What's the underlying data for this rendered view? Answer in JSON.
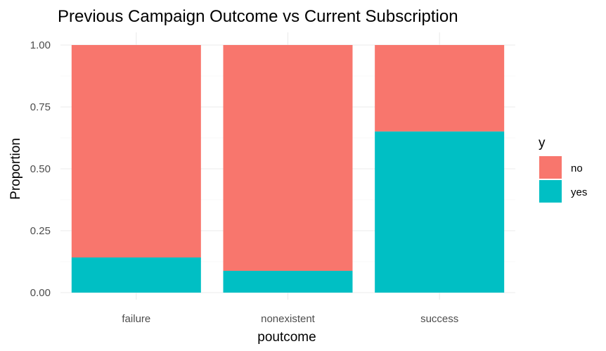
{
  "chart_data": {
    "type": "bar",
    "stacked": true,
    "title": "Previous Campaign Outcome vs Current Subscription",
    "xlabel": "poutcome",
    "ylabel": "Proportion",
    "categories": [
      "failure",
      "nonexistent",
      "success"
    ],
    "series": [
      {
        "name": "yes",
        "color": "#00BFC4",
        "values": [
          0.142,
          0.088,
          0.651
        ]
      },
      {
        "name": "no",
        "color": "#F8766D",
        "values": [
          0.858,
          0.912,
          0.349
        ]
      }
    ],
    "ylim": [
      0,
      1
    ],
    "yticks": [
      "0.00",
      "0.25",
      "0.50",
      "0.75",
      "1.00"
    ],
    "grid": true,
    "legend": {
      "title": "y",
      "position": "right",
      "entries": [
        {
          "label": "no",
          "color": "#F8766D"
        },
        {
          "label": "yes",
          "color": "#00BFC4"
        }
      ]
    }
  }
}
